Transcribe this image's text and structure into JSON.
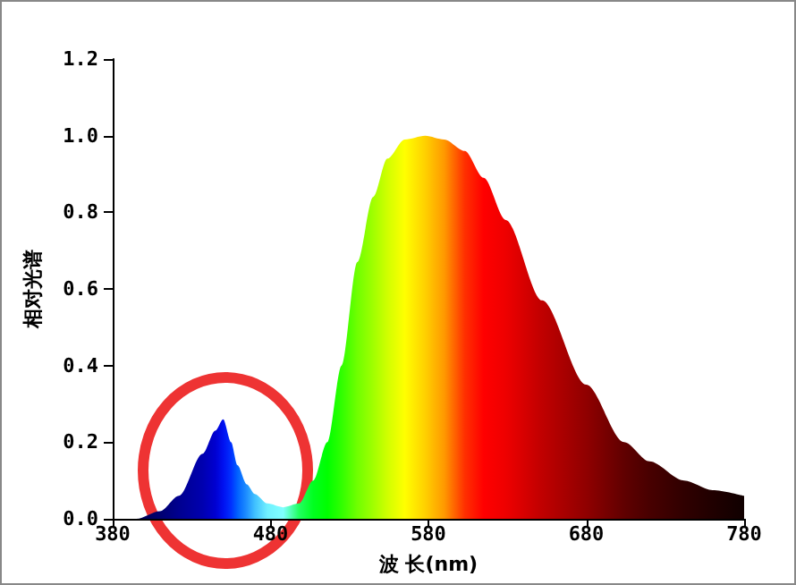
{
  "chart_data": {
    "type": "area",
    "xlabel": "波 长(nm)",
    "ylabel": "相对光谱",
    "x": [
      380,
      395,
      410,
      422,
      437,
      445,
      450,
      455,
      459,
      465,
      470,
      478,
      488,
      498,
      507,
      516,
      525,
      535,
      545,
      554,
      565,
      578,
      590,
      603,
      615,
      629,
      652,
      680,
      704,
      720,
      742,
      760,
      780
    ],
    "values": [
      0,
      0,
      0.02,
      0.06,
      0.17,
      0.23,
      0.26,
      0.2,
      0.14,
      0.09,
      0.065,
      0.04,
      0.03,
      0.04,
      0.1,
      0.2,
      0.4,
      0.67,
      0.84,
      0.94,
      0.99,
      1.0,
      0.99,
      0.96,
      0.89,
      0.78,
      0.57,
      0.35,
      0.2,
      0.15,
      0.1,
      0.075,
      0.06
    ],
    "colors": [
      "#000040",
      "#000050",
      "#000070",
      "#000090",
      "#0000b0",
      "#0000d0",
      "#0010f0",
      "#0030ff",
      "#0060ff",
      "#2090ff",
      "#40c0ff",
      "#70f0ff",
      "#80ffff",
      "#20ff60",
      "#00ff20",
      "#00ff00",
      "#30ff00",
      "#70ff00",
      "#a0ff00",
      "#d0ff00",
      "#ffff00",
      "#ffd000",
      "#ff9900",
      "#ff3000",
      "#ff0000",
      "#ee0000",
      "#c00000",
      "#900000",
      "#600000",
      "#480000",
      "#300000",
      "#200000",
      "#100000"
    ],
    "xlim": [
      380,
      780
    ],
    "xticks": [
      380,
      480,
      580,
      680,
      780
    ],
    "ylim": [
      0,
      1.2
    ],
    "yticks": [
      {
        "value": 0,
        "label": "0.0"
      },
      0.2,
      0.4,
      0.6,
      0.8,
      {
        "value": 1,
        "label": "1.0"
      },
      1.2
    ]
  }
}
